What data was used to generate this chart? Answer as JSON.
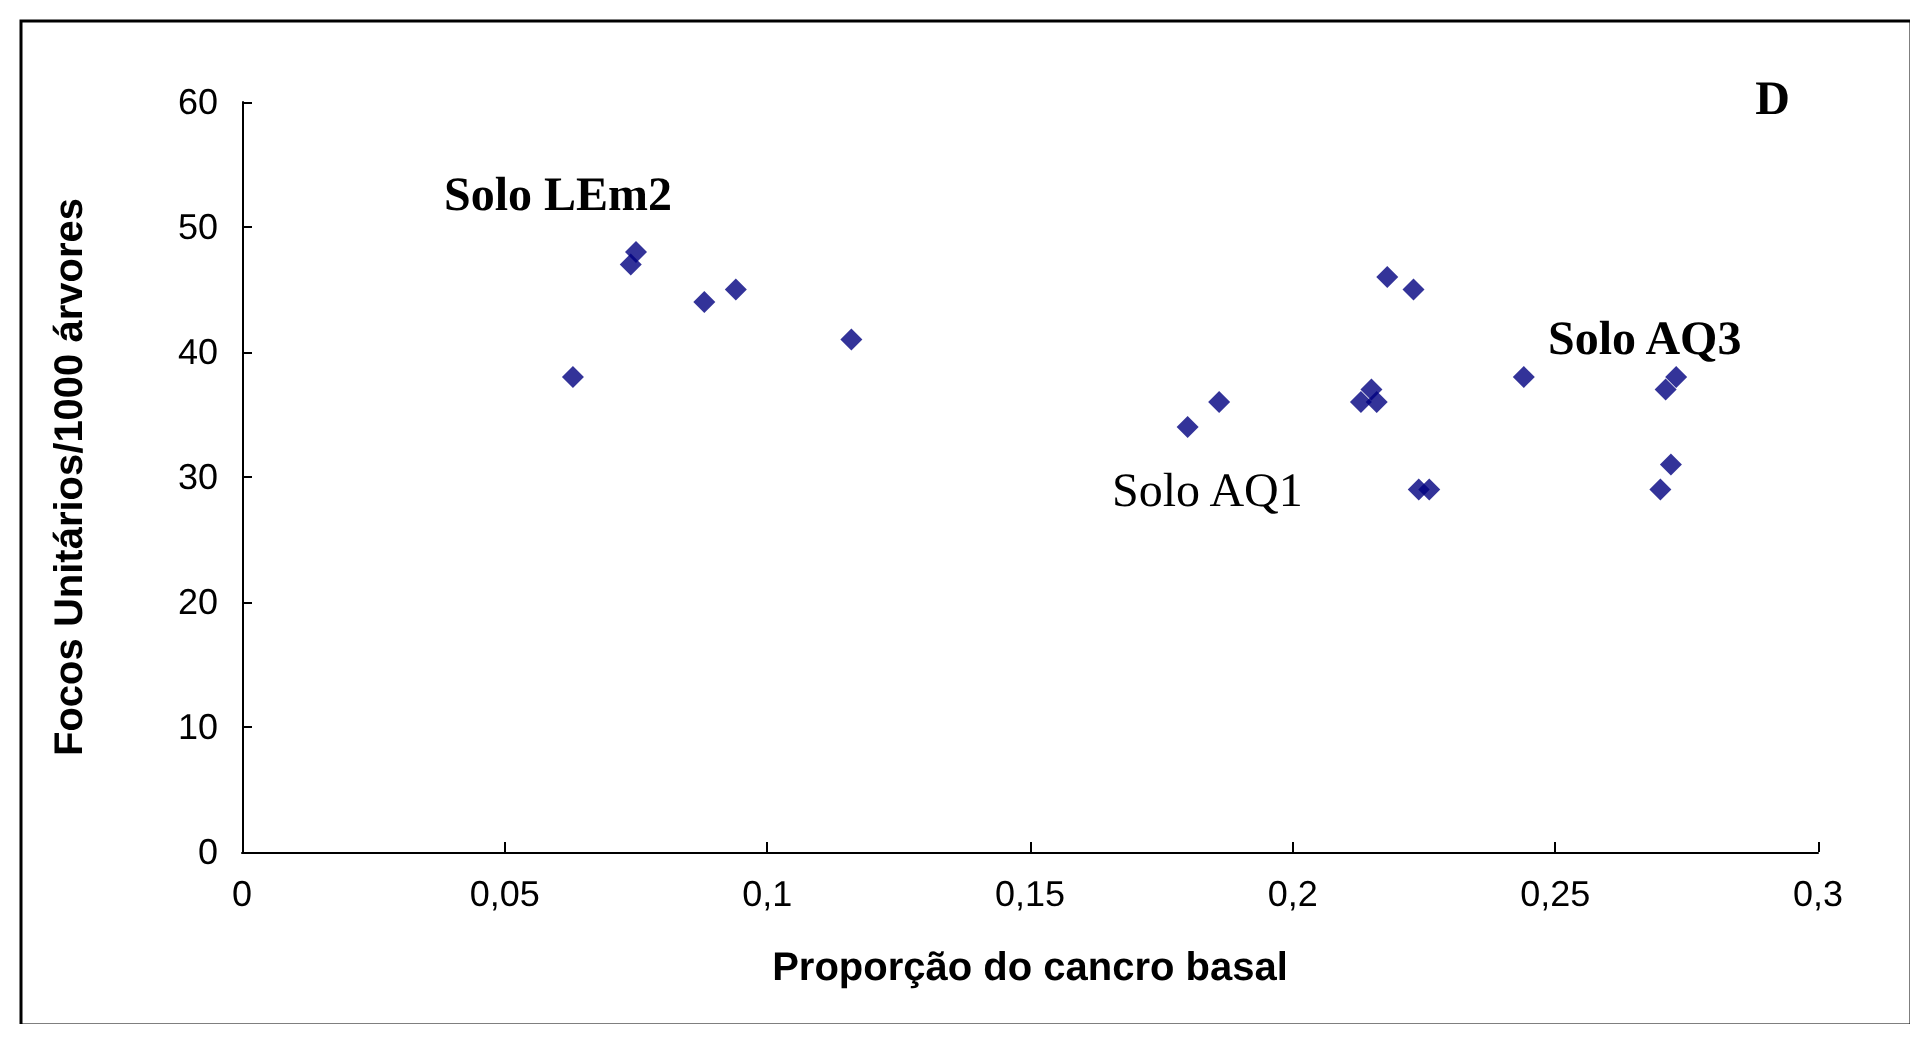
{
  "chart_data": {
    "type": "scatter",
    "xlabel": "Proporção do cancro basal",
    "ylabel": "Focos Unitários/1000 árvores",
    "x": [
      0.063,
      0.075,
      0.074,
      0.088,
      0.094,
      0.116,
      0.18,
      0.186,
      0.218,
      0.223,
      0.213,
      0.215,
      0.216,
      0.224,
      0.226,
      0.244,
      0.273,
      0.271,
      0.272,
      0.27
    ],
    "series": [
      {
        "color": "#000080",
        "values": [
          38,
          48,
          47,
          44,
          45,
          41,
          34,
          36,
          46,
          45,
          36,
          37,
          36,
          29,
          29,
          38,
          38,
          37,
          31,
          29
        ]
      }
    ],
    "xlim": [
      0,
      0.3
    ],
    "xticks": [
      0,
      {
        "value": 0.05,
        "label": "0,05"
      },
      {
        "value": 0.1,
        "label": "0,1"
      },
      {
        "value": 0.15,
        "label": "0,15"
      },
      {
        "value": 0.2,
        "label": "0,2"
      },
      {
        "value": 0.25,
        "label": "0,25"
      },
      {
        "value": 0.3,
        "label": "0,3"
      }
    ],
    "ylim": [
      0,
      60
    ],
    "yticks": [
      0,
      10,
      20,
      30,
      40,
      50,
      60
    ],
    "marker": "diamond",
    "grid": false,
    "annotations": [
      "Solo LEm2",
      "Solo AQ1",
      "Solo AQ3",
      "D"
    ]
  }
}
